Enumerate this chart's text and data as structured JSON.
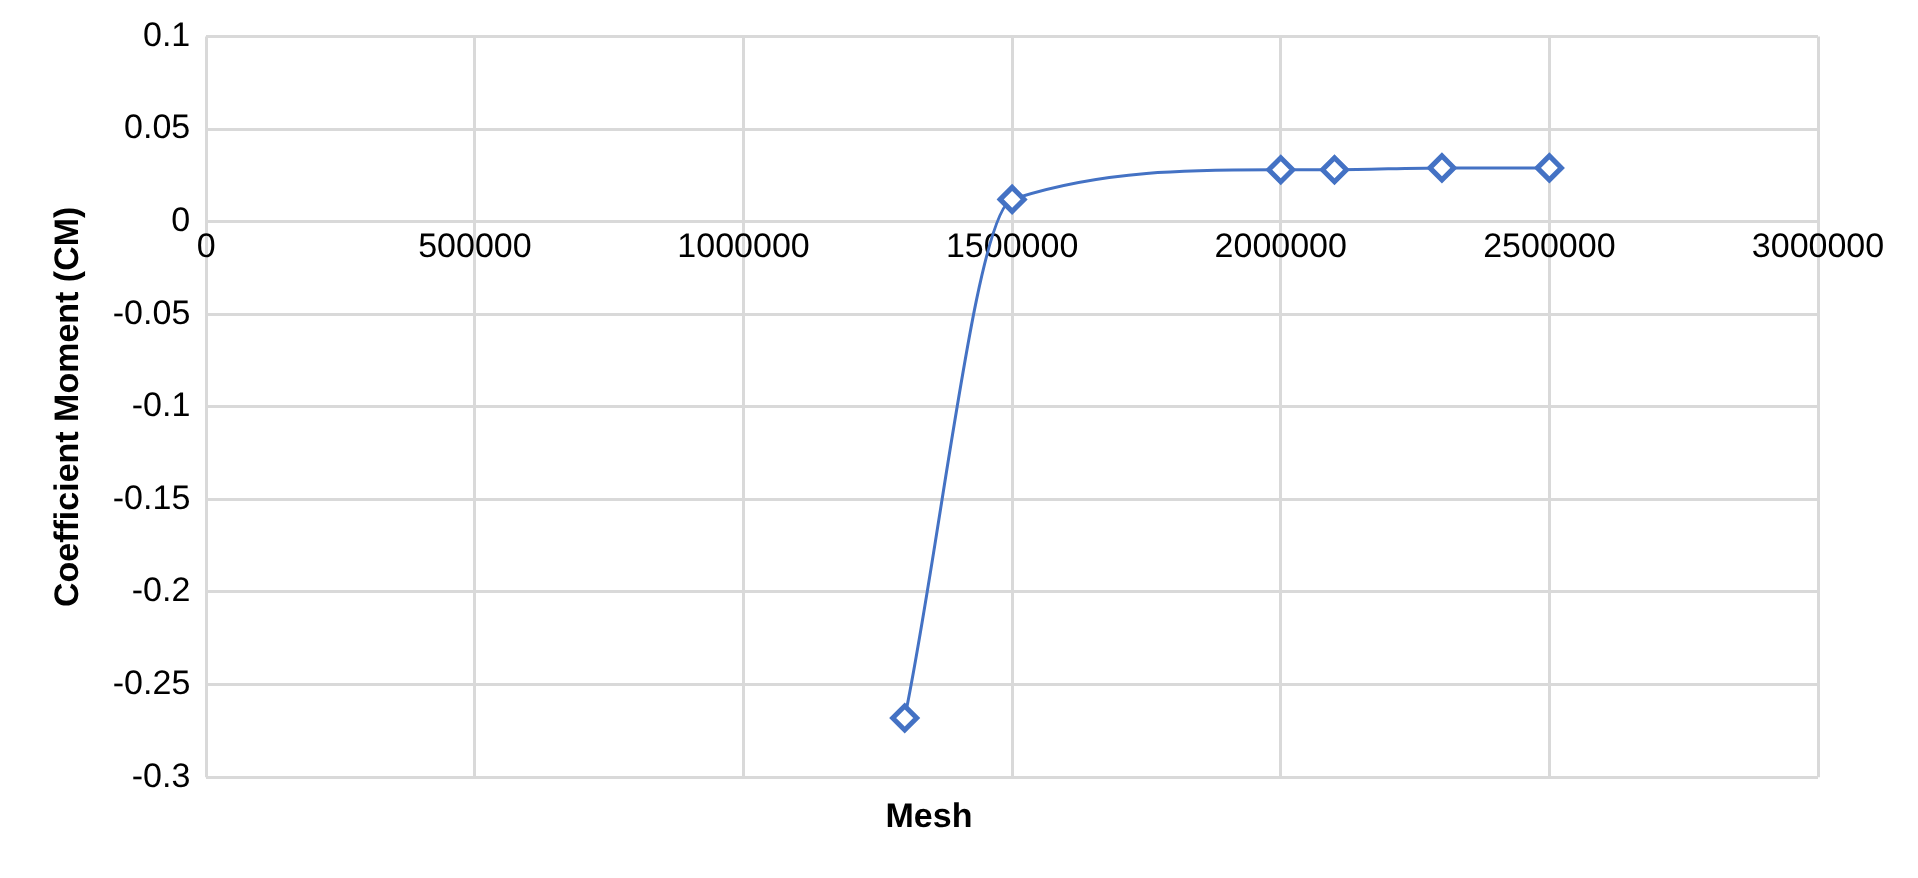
{
  "chart_data": {
    "type": "line",
    "xlabel": "Mesh",
    "ylabel": "Coefficient Moment (CM)",
    "x": [
      1300000,
      1500000,
      2000000,
      2100000,
      2300000,
      2500000
    ],
    "series": [
      {
        "color": "#4472c4",
        "values": [
          -0.268,
          0.012,
          0.028,
          0.028,
          0.029,
          0.029
        ]
      }
    ],
    "xlim": [
      0,
      3000000
    ],
    "xticks": [
      0,
      500000,
      1000000,
      1500000,
      2000000,
      2500000,
      3000000
    ],
    "ylim": [
      -0.3,
      0.1
    ],
    "yticks": [
      -0.3,
      -0.25,
      -0.2,
      -0.15,
      -0.1,
      -0.05,
      0,
      0.05,
      0.1
    ],
    "grid": true,
    "legend": false,
    "marker": "diamond",
    "line_style": "solid"
  }
}
